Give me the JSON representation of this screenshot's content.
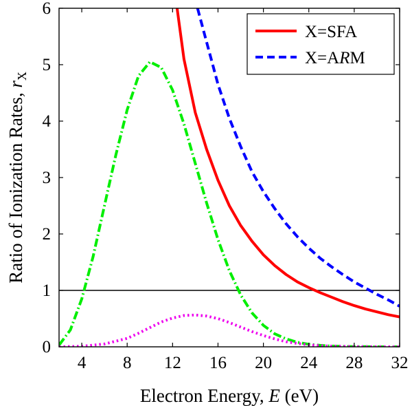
{
  "chart_data": {
    "type": "line",
    "title": "",
    "xlabel": "Electron Energy, E (eV)",
    "ylabel": "Ratio of Ionization Rates, r_X",
    "xlabel_parts": {
      "pre": "Electron Energy, ",
      "var": "E",
      "post": " (eV)"
    },
    "ylabel_parts": {
      "pre": "Ratio of Ionization Rates, ",
      "var": "r",
      "sub": "X"
    },
    "xlim": [
      2,
      32
    ],
    "ylim": [
      0,
      6
    ],
    "xticks": [
      4,
      8,
      12,
      16,
      20,
      24,
      28,
      32
    ],
    "yticks": [
      0,
      1,
      2,
      3,
      4,
      5,
      6
    ],
    "grid": false,
    "legend_position": "top-right",
    "reference_line": {
      "y": 1,
      "color": "#000000"
    },
    "series": [
      {
        "name": "X=SFA",
        "legend_parts": {
          "pre": "X=SFA",
          "var": "",
          "post": ""
        },
        "style": "solid",
        "color": "#ff0000",
        "x": [
          12.4,
          13,
          14,
          15,
          16,
          17,
          18,
          19,
          20,
          21,
          22,
          23,
          24,
          25,
          26,
          27,
          28,
          29,
          30,
          31,
          32
        ],
        "y": [
          6.0,
          5.1,
          4.15,
          3.5,
          2.95,
          2.5,
          2.15,
          1.87,
          1.63,
          1.44,
          1.28,
          1.15,
          1.05,
          0.96,
          0.88,
          0.8,
          0.73,
          0.67,
          0.62,
          0.57,
          0.53
        ]
      },
      {
        "name": "X=ARM",
        "legend_parts": {
          "pre": "X=A",
          "var": "R",
          "post": "M"
        },
        "style": "dashed",
        "color": "#0000ff",
        "x": [
          14.2,
          15,
          16,
          17,
          18,
          19,
          20,
          21,
          22,
          23,
          24,
          25,
          26,
          27,
          28,
          29,
          30,
          31,
          32
        ],
        "y": [
          6.0,
          5.4,
          4.65,
          4.05,
          3.55,
          3.1,
          2.75,
          2.45,
          2.18,
          1.95,
          1.75,
          1.57,
          1.42,
          1.28,
          1.15,
          1.04,
          0.93,
          0.83,
          0.72
        ]
      },
      {
        "name": "",
        "style": "dashdot",
        "color": "#00ee00",
        "x": [
          2,
          3,
          4,
          5,
          6,
          7,
          8,
          9,
          10,
          11,
          12,
          13,
          14,
          15,
          16,
          17,
          18,
          19,
          20,
          21,
          22,
          23,
          24,
          25,
          26,
          27,
          28,
          29,
          30,
          31,
          32
        ],
        "y": [
          0.03,
          0.3,
          0.85,
          1.6,
          2.5,
          3.4,
          4.2,
          4.8,
          5.05,
          4.95,
          4.55,
          3.95,
          3.25,
          2.55,
          1.9,
          1.35,
          0.92,
          0.6,
          0.38,
          0.23,
          0.14,
          0.08,
          0.045,
          0.025,
          0.013,
          0.007,
          0.004,
          0.002,
          0.001,
          0.0005,
          0.0002
        ]
      },
      {
        "name": "",
        "style": "dotted",
        "color": "#ee00ee",
        "x": [
          2,
          4,
          6,
          8,
          9,
          10,
          11,
          12,
          13,
          14,
          15,
          16,
          17,
          18,
          19,
          20,
          21,
          22,
          23,
          24,
          25,
          26,
          27,
          28,
          29,
          30,
          31,
          32
        ],
        "y": [
          0.0,
          0.01,
          0.05,
          0.15,
          0.24,
          0.34,
          0.44,
          0.51,
          0.555,
          0.565,
          0.545,
          0.5,
          0.43,
          0.35,
          0.27,
          0.2,
          0.14,
          0.09,
          0.06,
          0.035,
          0.02,
          0.012,
          0.007,
          0.004,
          0.002,
          0.001,
          0.0005,
          0.0002
        ]
      }
    ]
  }
}
